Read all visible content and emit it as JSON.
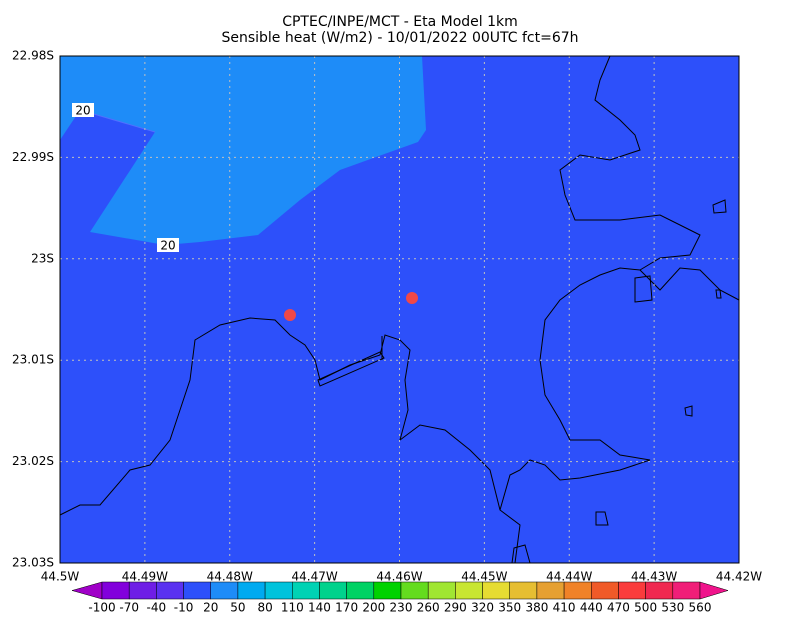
{
  "title": [
    "CPTEC/INPE/MCT -  Eta Model 1km",
    "Sensible heat (W/m2) - 10/01/2022 00UTC fct=67h"
  ],
  "yticks": [
    "22.98S",
    "22.99S",
    "23S",
    "23.01S",
    "23.02S",
    "23.03S"
  ],
  "xticks": [
    "44.5W",
    "44.49W",
    "44.48W",
    "44.47W",
    "44.46W",
    "44.45W",
    "44.44W",
    "44.43W",
    "44.42W"
  ],
  "contour_labels": [
    "20",
    "20"
  ],
  "field_colors": {
    "background": "#2d50fa",
    "shaded": "#1e8cf8"
  },
  "colorbar": {
    "labels": [
      "-100",
      "-70",
      "-40",
      "-10",
      "20",
      "50",
      "80",
      "110",
      "140",
      "170",
      "200",
      "230",
      "260",
      "290",
      "320",
      "350",
      "380",
      "410",
      "440",
      "470",
      "500",
      "530",
      "560"
    ],
    "colors": [
      "#a000c8",
      "#8200dc",
      "#6e1ee6",
      "#5a32f0",
      "#2d50fa",
      "#1e8cf8",
      "#00aaf0",
      "#00c3dc",
      "#00d2b4",
      "#00d28c",
      "#00d264",
      "#00d200",
      "#64dc1e",
      "#a0e632",
      "#c8e632",
      "#e6dc32",
      "#e6be32",
      "#e6a032",
      "#f08228",
      "#f05a28",
      "#fa3c3c",
      "#f02850",
      "#f01e78",
      "#f0148c"
    ]
  }
}
